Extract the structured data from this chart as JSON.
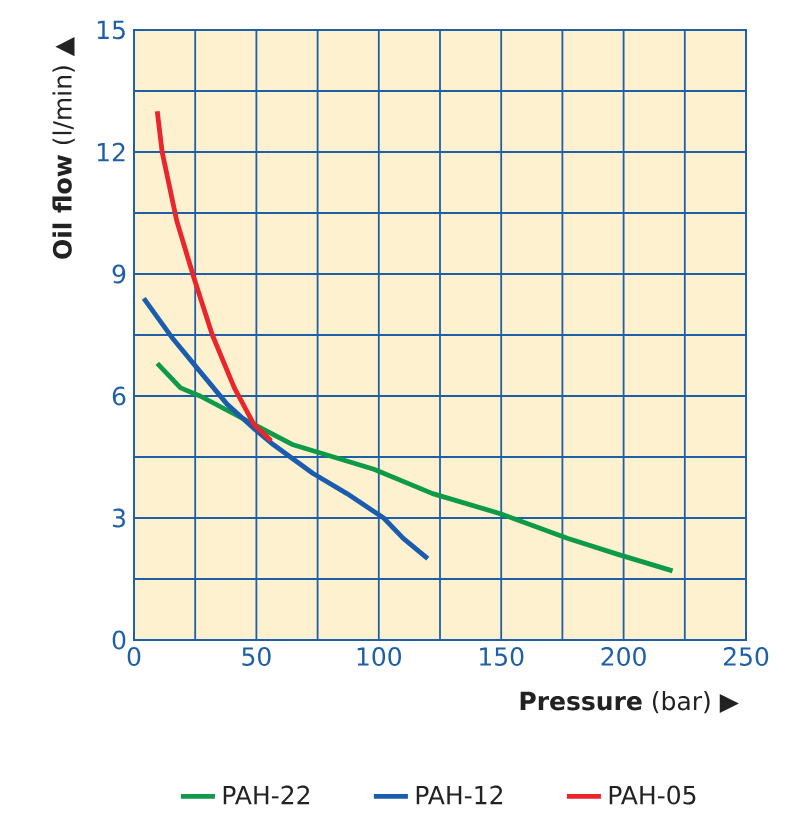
{
  "chart_data": {
    "type": "line",
    "xlabel": "**Pressure** (bar) ▶",
    "ylabel": "**Oil flow** (l/min) ▲",
    "xlim": [
      0,
      250
    ],
    "ylim": [
      0,
      15
    ],
    "xticks": [
      0,
      {
        "value": 25,
        "label": null
      },
      50,
      {
        "value": 75,
        "label": null
      },
      100,
      {
        "value": 125,
        "label": null
      },
      150,
      {
        "value": 175,
        "label": null
      },
      200,
      {
        "value": 225,
        "label": null
      },
      250
    ],
    "yticks": [
      0,
      {
        "value": 1.5,
        "label": null
      },
      3,
      {
        "value": 4.5,
        "label": null
      },
      6,
      {
        "value": 7.5,
        "label": null
      },
      9,
      {
        "value": 10.5,
        "label": null
      },
      12,
      {
        "value": 13.5,
        "label": null
      },
      15
    ],
    "grid": true,
    "legend": "bottom",
    "marker": "none",
    "line_style": "solid",
    "series": [
      {
        "name": "PAH-22",
        "color": "#0e9a48",
        "x": [
          9.5,
          19,
          27,
          49,
          65,
          81.5,
          98,
          122,
          150,
          177,
          198,
          220
        ],
        "values": [
          6.8,
          6.2,
          6.0,
          5.3,
          4.8,
          4.5,
          4.2,
          3.6,
          3.1,
          2.5,
          2.1,
          1.7
        ]
      },
      {
        "name": "PAH-12",
        "color": "#1a5cae",
        "x": [
          4,
          16,
          27,
          38,
          49,
          57,
          73,
          87,
          102,
          110,
          120
        ],
        "values": [
          8.4,
          7.4,
          6.6,
          5.8,
          5.2,
          4.8,
          4.1,
          3.6,
          3.0,
          2.5,
          2.0
        ]
      },
      {
        "name": "PAH-05",
        "color": "#e8262c",
        "x": [
          9.5,
          11.5,
          17.5,
          24.5,
          32,
          41,
          49,
          56
        ],
        "values": [
          13.0,
          12.0,
          10.3,
          8.9,
          7.5,
          6.2,
          5.3,
          4.9
        ]
      }
    ]
  }
}
